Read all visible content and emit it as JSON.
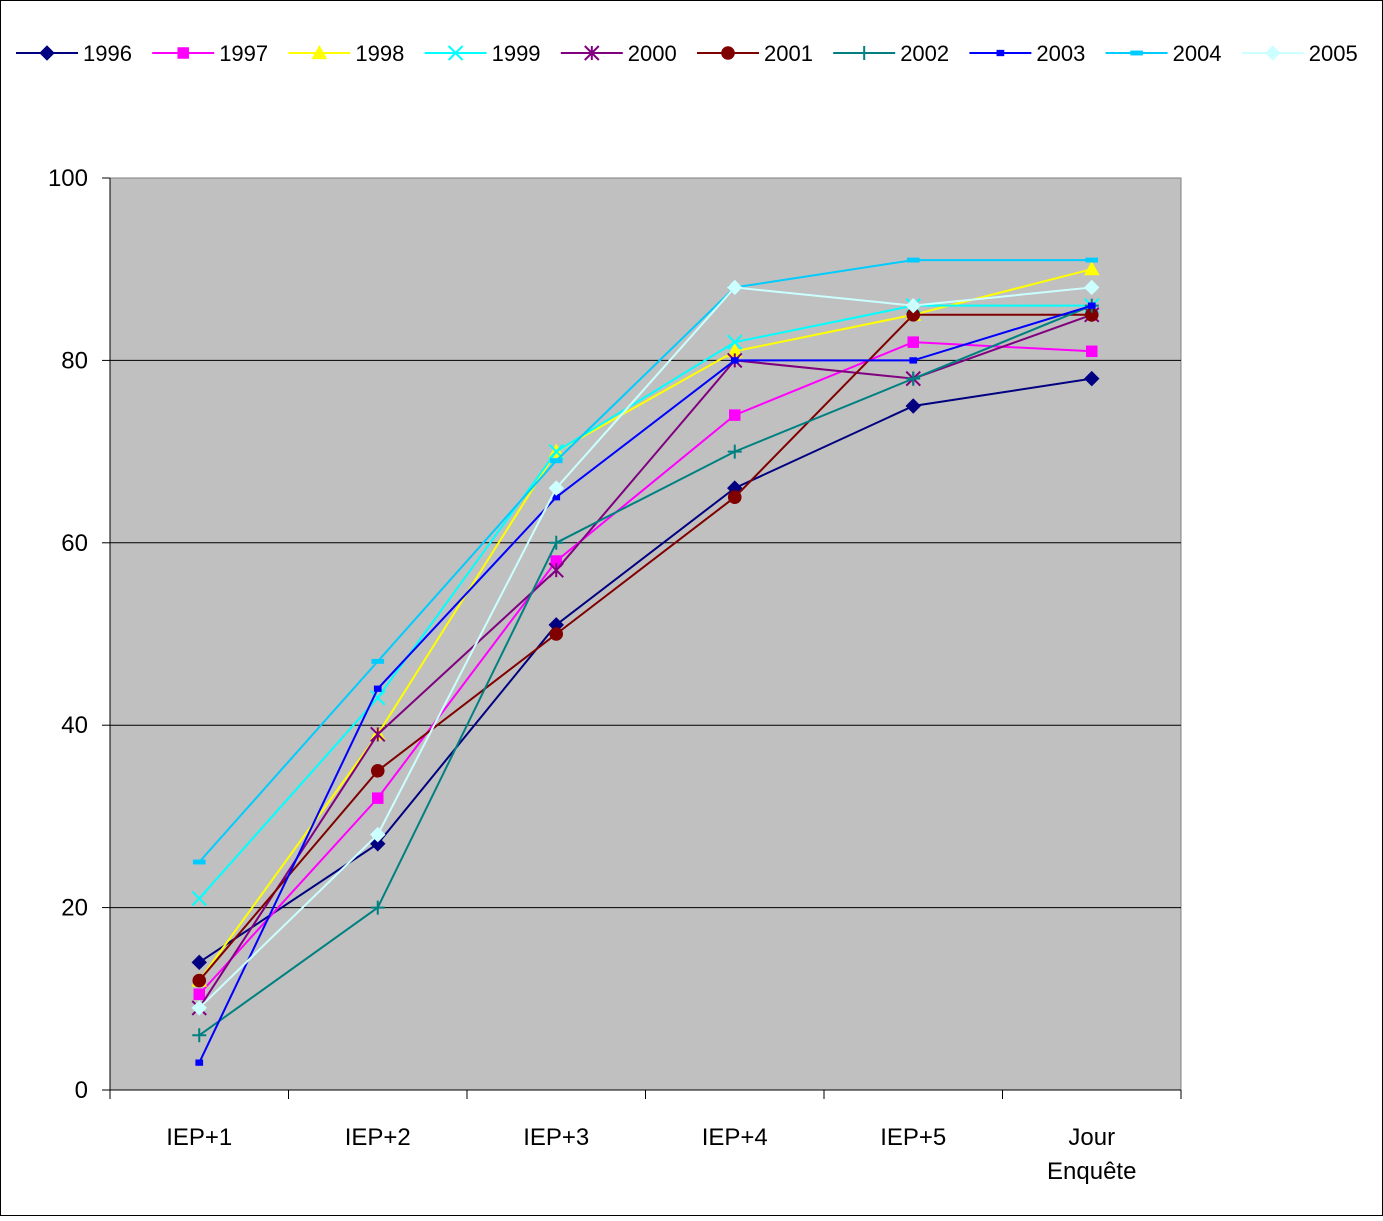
{
  "chart_data": {
    "type": "line",
    "categories": [
      "IEP+1",
      "IEP+2",
      "IEP+3",
      "IEP+4",
      "IEP+5",
      "Jour Enquête"
    ],
    "category_lines": [
      [
        "IEP+1"
      ],
      [
        "IEP+2"
      ],
      [
        "IEP+3"
      ],
      [
        "IEP+4"
      ],
      [
        "IEP+5"
      ],
      [
        "Jour",
        "Enquête"
      ]
    ],
    "ylim": [
      0,
      100
    ],
    "yticks": [
      0,
      20,
      40,
      60,
      80,
      100
    ],
    "grid": true,
    "legend_position": "top",
    "plot_background": "#c0c0c0",
    "series": [
      {
        "name": "1996",
        "color": "#000080",
        "marker": "diamond",
        "values": [
          14,
          27,
          51,
          66,
          75,
          78
        ]
      },
      {
        "name": "1997",
        "color": "#ff00ff",
        "marker": "square",
        "values": [
          10.5,
          32,
          58,
          74,
          82,
          81
        ]
      },
      {
        "name": "1998",
        "color": "#ffff00",
        "marker": "triangle",
        "values": [
          12,
          39,
          70,
          81,
          85,
          90
        ]
      },
      {
        "name": "1999",
        "color": "#00ffff",
        "marker": "x",
        "values": [
          21,
          43,
          70,
          82,
          86,
          86
        ]
      },
      {
        "name": "2000",
        "color": "#800080",
        "marker": "star",
        "values": [
          9,
          39,
          57,
          80,
          78,
          85
        ]
      },
      {
        "name": "2001",
        "color": "#800000",
        "marker": "circle",
        "values": [
          12,
          35,
          50,
          65,
          85,
          85
        ]
      },
      {
        "name": "2002",
        "color": "#008080",
        "marker": "plus",
        "values": [
          6,
          20,
          60,
          70,
          78,
          86
        ]
      },
      {
        "name": "2003",
        "color": "#0000ff",
        "marker": "smallsquare",
        "values": [
          3,
          44,
          65,
          80,
          80,
          86
        ]
      },
      {
        "name": "2004",
        "color": "#00ccff",
        "marker": "dash",
        "values": [
          25,
          47,
          69,
          88,
          91,
          91
        ]
      },
      {
        "name": "2005",
        "color": "#ccffff",
        "marker": "diamond",
        "values": [
          9,
          28,
          66,
          88,
          86,
          88
        ]
      }
    ]
  }
}
